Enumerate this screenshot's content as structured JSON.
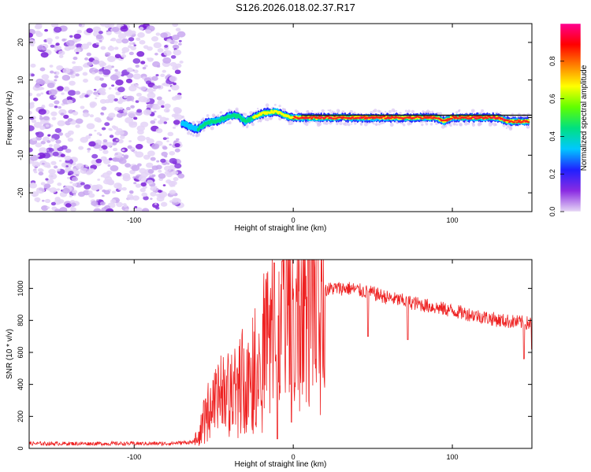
{
  "figure": {
    "title": "S126.2026.018.02.37.R17"
  },
  "chart_data": [
    {
      "type": "heatmap",
      "name": "spectrogram",
      "xlabel": "Height of straight line (km)",
      "ylabel": "Frequency (Hz)",
      "xlim": [
        -166,
        150
      ],
      "ylim": [
        -25,
        25
      ],
      "xticks": [
        -100,
        0,
        100
      ],
      "xtick_labels": [
        "-100",
        "0",
        "100"
      ],
      "yticks": [
        -20,
        -10,
        0,
        10,
        20
      ],
      "ytick_labels": [
        "-20",
        "-10",
        "0",
        "10",
        "20"
      ],
      "colorbar": {
        "label": "Normalized spectral amplitude",
        "range": [
          0,
          1
        ],
        "ticks": [
          0.0,
          0.2,
          0.4,
          0.6,
          0.8
        ],
        "tick_labels": [
          "0.0",
          "0.2",
          "0.4",
          "0.6",
          "0.8"
        ],
        "colors": [
          "#e6d8f5",
          "#8a2be2",
          "#2020ff",
          "#00c8ff",
          "#00e080",
          "#60ff00",
          "#ffff00",
          "#ff8000",
          "#ff0000",
          "#ff0090"
        ]
      },
      "noise_region_km": [
        -166,
        -70
      ],
      "ridge": {
        "description_values": "center frequency (Hz) of the dominant spectral line versus height",
        "x": [
          -70,
          -65,
          -60,
          -55,
          -50,
          -45,
          -40,
          -35,
          -30,
          -25,
          -20,
          -15,
          -10,
          -5,
          0,
          10,
          20,
          30,
          40,
          50,
          60,
          70,
          80,
          90,
          95,
          100,
          110,
          120,
          128,
          135,
          140,
          148
        ],
        "freq": [
          -1.5,
          -2.5,
          -3,
          -1.5,
          -1,
          -0.5,
          0.5,
          0.5,
          -1,
          0,
          1,
          1.5,
          1.5,
          0.5,
          0,
          0,
          0,
          0,
          0,
          0,
          0,
          0,
          0,
          0,
          -1,
          0,
          0,
          0,
          0,
          -1,
          -1,
          -1
        ],
        "amplitude": [
          0.3,
          0.35,
          0.4,
          0.45,
          0.5,
          0.5,
          0.55,
          0.5,
          0.55,
          0.6,
          0.6,
          0.65,
          0.6,
          0.7,
          0.75,
          0.8,
          0.75,
          0.75,
          0.8,
          0.75,
          0.85,
          0.9,
          0.9,
          0.85,
          0.8,
          0.9,
          0.9,
          0.85,
          0.8,
          0.75,
          0.85,
          0.85
        ]
      }
    },
    {
      "type": "line",
      "name": "snr",
      "xlabel": "Height of straight line (km)",
      "ylabel": "SNR (10 * v/v)",
      "xlim": [
        -166,
        150
      ],
      "ylim": [
        0,
        1180
      ],
      "xticks": [
        -100,
        0,
        100
      ],
      "xtick_labels": [
        "-100",
        "0",
        "100"
      ],
      "yticks": [
        0,
        200,
        400,
        600,
        800,
        1000
      ],
      "ytick_labels": [
        "0",
        "200",
        "400",
        "600",
        "800",
        "1000"
      ],
      "line_color": "#ee2222",
      "series": [
        {
          "name": "SNR envelope",
          "x": [
            -166,
            -120,
            -80,
            -62,
            -58,
            -55,
            -50,
            -45,
            -40,
            -35,
            -30,
            -25,
            -20,
            -15,
            -10,
            -5,
            0,
            5,
            10,
            15,
            20,
            25,
            30,
            35,
            40,
            50,
            60,
            70,
            80,
            90,
            100,
            110,
            120,
            130,
            140,
            150
          ],
          "values": [
            30,
            30,
            30,
            40,
            120,
            200,
            280,
            320,
            330,
            380,
            450,
            520,
            580,
            640,
            700,
            800,
            880,
            930,
            960,
            980,
            990,
            1000,
            1000,
            1000,
            990,
            970,
            940,
            920,
            900,
            880,
            860,
            840,
            820,
            800,
            790,
            780
          ]
        }
      ],
      "dips": [
        {
          "x": -10,
          "value": 60
        },
        {
          "x": 47,
          "value": 700
        },
        {
          "x": 72,
          "value": 680
        },
        {
          "x": 145,
          "value": 560
        },
        {
          "x": 150,
          "value": 620
        }
      ],
      "peaks": [
        {
          "x": -12,
          "value": 1160
        },
        {
          "x": -7,
          "value": 1170
        }
      ]
    }
  ]
}
